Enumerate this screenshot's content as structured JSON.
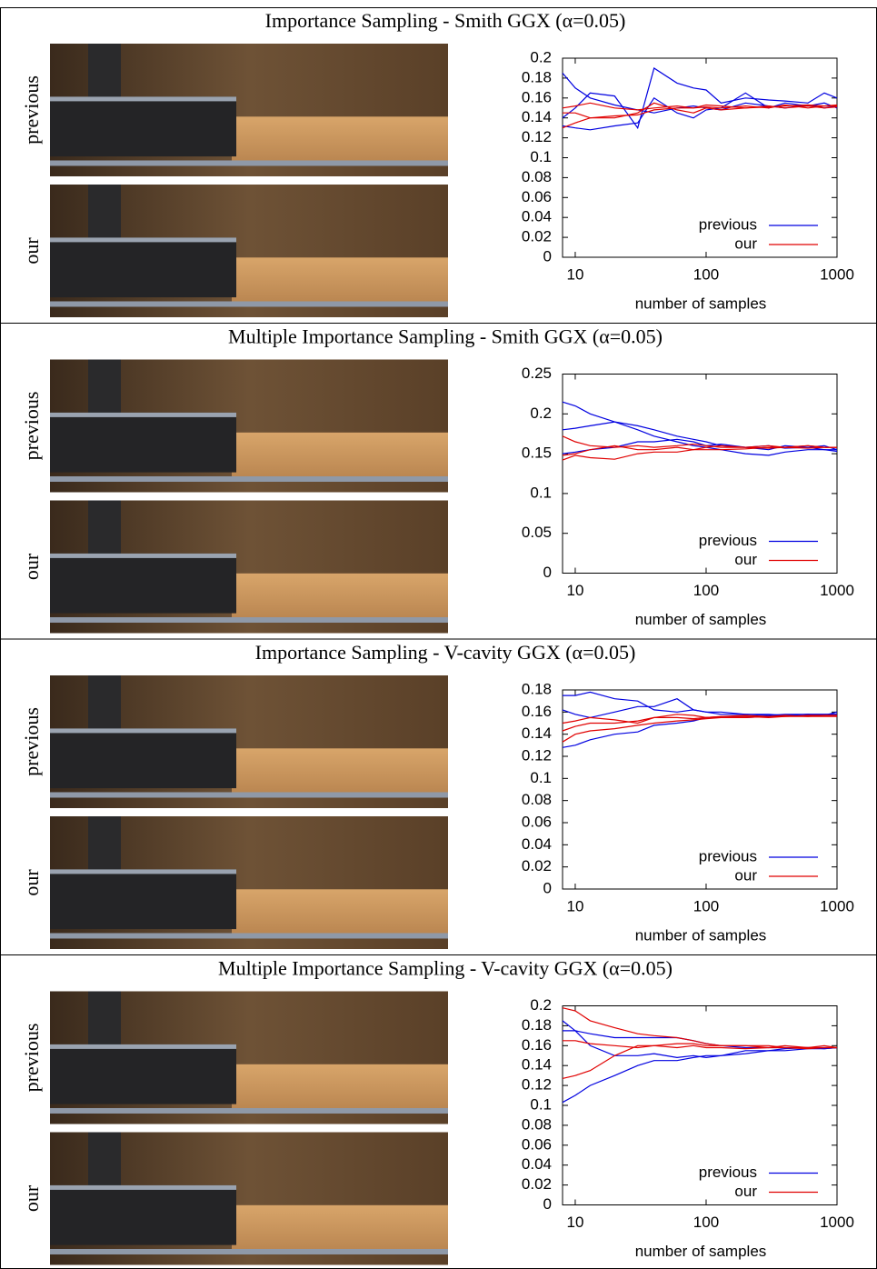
{
  "panels": [
    {
      "image_labels": [
        "previous",
        "our"
      ]
    },
    {
      "image_labels": [
        "previous",
        "our"
      ]
    },
    {
      "image_labels": [
        "previous",
        "our"
      ]
    },
    {
      "image_labels": [
        "previous",
        "our"
      ]
    }
  ],
  "chart_data": [
    {
      "type": "line",
      "title": "Importance Sampling - Smith GGX (α=0.05)",
      "xlabel": "number of samples",
      "xscale": "log",
      "xlim": [
        8,
        1000
      ],
      "xticks": [
        10,
        100,
        1000
      ],
      "ylim": [
        0,
        0.2
      ],
      "yticks": [
        0,
        0.02,
        0.04,
        0.06,
        0.08,
        0.1,
        0.12,
        0.14,
        0.16,
        0.18,
        0.2
      ],
      "grid": false,
      "legend": "lower right",
      "x": [
        8,
        10,
        13,
        20,
        30,
        40,
        60,
        80,
        100,
        130,
        200,
        300,
        400,
        600,
        800,
        1000
      ],
      "series": [
        {
          "name": "previous",
          "color": "#0000e0",
          "lines": [
            [
              0.185,
              0.17,
              0.16,
              0.153,
              0.148,
              0.145,
              0.15,
              0.152,
              0.15,
              0.148,
              0.155,
              0.152,
              0.15,
              0.153,
              0.15,
              0.152
            ],
            [
              0.14,
              0.15,
              0.165,
              0.162,
              0.13,
              0.19,
              0.175,
              0.17,
              0.168,
              0.155,
              0.16,
              0.158,
              0.157,
              0.155,
              0.165,
              0.16
            ],
            [
              0.132,
              0.13,
              0.128,
              0.132,
              0.135,
              0.16,
              0.145,
              0.14,
              0.148,
              0.15,
              0.165,
              0.15,
              0.155,
              0.152,
              0.155,
              0.15
            ]
          ]
        },
        {
          "name": "our",
          "color": "#e00000",
          "lines": [
            [
              0.15,
              0.152,
              0.155,
              0.15,
              0.148,
              0.15,
              0.152,
              0.15,
              0.153,
              0.152,
              0.15,
              0.151,
              0.152,
              0.153,
              0.152,
              0.152
            ],
            [
              0.13,
              0.135,
              0.14,
              0.142,
              0.143,
              0.148,
              0.15,
              0.15,
              0.151,
              0.15,
              0.152,
              0.15,
              0.153,
              0.15,
              0.152,
              0.153
            ],
            [
              0.145,
              0.145,
              0.14,
              0.14,
              0.145,
              0.155,
              0.148,
              0.145,
              0.15,
              0.148,
              0.15,
              0.152,
              0.15,
              0.152,
              0.15,
              0.151
            ]
          ]
        }
      ]
    },
    {
      "type": "line",
      "title": "Multiple Importance Sampling - Smith GGX (α=0.05)",
      "xlabel": "number of samples",
      "xscale": "log",
      "xlim": [
        8,
        1000
      ],
      "xticks": [
        10,
        100,
        1000
      ],
      "ylim": [
        0,
        0.25
      ],
      "yticks": [
        0,
        0.05,
        0.1,
        0.15,
        0.2,
        0.25
      ],
      "grid": false,
      "legend": "lower right",
      "x": [
        8,
        10,
        13,
        20,
        30,
        40,
        60,
        80,
        100,
        130,
        200,
        300,
        400,
        600,
        800,
        1000
      ],
      "series": [
        {
          "name": "previous",
          "color": "#0000e0",
          "lines": [
            [
              0.215,
              0.21,
              0.2,
              0.19,
              0.185,
              0.18,
              0.172,
              0.168,
              0.165,
              0.16,
              0.158,
              0.16,
              0.157,
              0.158,
              0.155,
              0.155
            ],
            [
              0.18,
              0.182,
              0.185,
              0.19,
              0.18,
              0.172,
              0.165,
              0.16,
              0.158,
              0.155,
              0.15,
              0.148,
              0.152,
              0.155,
              0.155,
              0.153
            ],
            [
              0.15,
              0.152,
              0.155,
              0.158,
              0.165,
              0.165,
              0.168,
              0.165,
              0.16,
              0.162,
              0.158,
              0.155,
              0.16,
              0.158,
              0.16,
              0.155
            ]
          ]
        },
        {
          "name": "our",
          "color": "#e00000",
          "lines": [
            [
              0.172,
              0.165,
              0.16,
              0.158,
              0.16,
              0.158,
              0.16,
              0.162,
              0.16,
              0.158,
              0.158,
              0.16,
              0.158,
              0.16,
              0.158,
              0.158
            ],
            [
              0.148,
              0.15,
              0.155,
              0.16,
              0.155,
              0.155,
              0.158,
              0.155,
              0.158,
              0.16,
              0.158,
              0.157,
              0.158,
              0.157,
              0.158,
              0.158
            ],
            [
              0.142,
              0.148,
              0.145,
              0.143,
              0.15,
              0.152,
              0.152,
              0.155,
              0.155,
              0.155,
              0.156,
              0.158,
              0.158,
              0.16,
              0.158,
              0.158
            ]
          ]
        }
      ]
    },
    {
      "type": "line",
      "title": "Importance Sampling - V-cavity GGX (α=0.05)",
      "xlabel": "number of samples",
      "xscale": "log",
      "xlim": [
        8,
        1000
      ],
      "xticks": [
        10,
        100,
        1000
      ],
      "ylim": [
        0,
        0.18
      ],
      "yticks": [
        0,
        0.02,
        0.04,
        0.06,
        0.08,
        0.1,
        0.12,
        0.14,
        0.16,
        0.18
      ],
      "grid": false,
      "legend": "lower right",
      "x": [
        8,
        10,
        13,
        20,
        30,
        40,
        60,
        80,
        100,
        130,
        200,
        300,
        400,
        600,
        800,
        1000
      ],
      "series": [
        {
          "name": "previous",
          "color": "#0000e0",
          "lines": [
            [
              0.175,
              0.175,
              0.178,
              0.172,
              0.17,
              0.162,
              0.16,
              0.162,
              0.16,
              0.16,
              0.158,
              0.158,
              0.157,
              0.158,
              0.158,
              0.158
            ],
            [
              0.162,
              0.158,
              0.155,
              0.16,
              0.165,
              0.165,
              0.172,
              0.162,
              0.16,
              0.158,
              0.158,
              0.157,
              0.158,
              0.158,
              0.157,
              0.16
            ],
            [
              0.128,
              0.13,
              0.135,
              0.14,
              0.142,
              0.148,
              0.15,
              0.152,
              0.155,
              0.155,
              0.155,
              0.156,
              0.157,
              0.158,
              0.158,
              0.158
            ]
          ]
        },
        {
          "name": "our",
          "color": "#e00000",
          "lines": [
            [
              0.133,
              0.14,
              0.143,
              0.145,
              0.148,
              0.15,
              0.152,
              0.153,
              0.154,
              0.155,
              0.155,
              0.156,
              0.156,
              0.157,
              0.157,
              0.157
            ],
            [
              0.143,
              0.147,
              0.15,
              0.15,
              0.152,
              0.155,
              0.155,
              0.154,
              0.155,
              0.156,
              0.156,
              0.155,
              0.156,
              0.156,
              0.157,
              0.157
            ],
            [
              0.15,
              0.152,
              0.155,
              0.153,
              0.15,
              0.155,
              0.158,
              0.157,
              0.155,
              0.156,
              0.157,
              0.156,
              0.157,
              0.156,
              0.156,
              0.156
            ]
          ]
        }
      ]
    },
    {
      "type": "line",
      "title": "Multiple Importance Sampling - V-cavity GGX (α=0.05)",
      "xlabel": "number of samples",
      "xscale": "log",
      "xlim": [
        8,
        1000
      ],
      "xticks": [
        10,
        100,
        1000
      ],
      "ylim": [
        0,
        0.2
      ],
      "yticks": [
        0,
        0.02,
        0.04,
        0.06,
        0.08,
        0.1,
        0.12,
        0.14,
        0.16,
        0.18,
        0.2
      ],
      "grid": false,
      "legend": "lower right",
      "x": [
        8,
        10,
        13,
        20,
        30,
        40,
        60,
        80,
        100,
        130,
        200,
        300,
        400,
        600,
        800,
        1000
      ],
      "series": [
        {
          "name": "previous",
          "color": "#0000e0",
          "lines": [
            [
              0.185,
              0.175,
              0.16,
              0.15,
              0.15,
              0.152,
              0.148,
              0.15,
              0.148,
              0.15,
              0.155,
              0.155,
              0.157,
              0.158,
              0.158,
              0.158
            ],
            [
              0.175,
              0.175,
              0.172,
              0.168,
              0.168,
              0.168,
              0.168,
              0.165,
              0.162,
              0.16,
              0.158,
              0.158,
              0.158,
              0.158,
              0.157,
              0.158
            ],
            [
              0.103,
              0.11,
              0.12,
              0.13,
              0.14,
              0.145,
              0.145,
              0.148,
              0.15,
              0.15,
              0.152,
              0.155,
              0.155,
              0.157,
              0.157,
              0.158
            ]
          ]
        },
        {
          "name": "our",
          "color": "#e00000",
          "lines": [
            [
              0.198,
              0.195,
              0.185,
              0.178,
              0.172,
              0.17,
              0.168,
              0.165,
              0.162,
              0.16,
              0.16,
              0.16,
              0.158,
              0.158,
              0.16,
              0.158
            ],
            [
              0.165,
              0.165,
              0.162,
              0.16,
              0.158,
              0.16,
              0.158,
              0.16,
              0.158,
              0.158,
              0.157,
              0.158,
              0.158,
              0.157,
              0.158,
              0.158
            ],
            [
              0.127,
              0.13,
              0.135,
              0.15,
              0.16,
              0.16,
              0.162,
              0.162,
              0.16,
              0.16,
              0.16,
              0.158,
              0.16,
              0.158,
              0.158,
              0.158
            ]
          ]
        }
      ]
    }
  ]
}
